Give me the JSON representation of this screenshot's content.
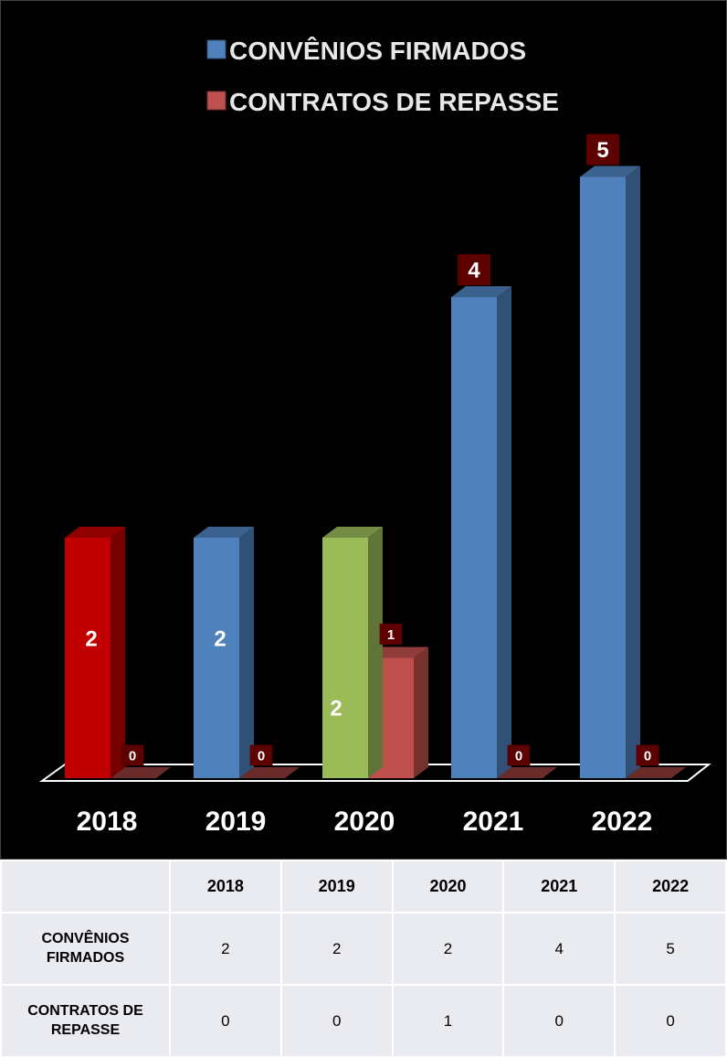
{
  "colors": {
    "background": "#000000",
    "convenios": "#4f81bd",
    "contratos": "#c0504d",
    "bar_2018": "#c00000",
    "bar_2020": "#9bbb59",
    "value_box": "#5c0000",
    "label_text": "#ffffff",
    "table_bg": "#e9ebf0"
  },
  "chart_data": {
    "type": "bar",
    "categories": [
      "2018",
      "2019",
      "2020",
      "2021",
      "2022"
    ],
    "series": [
      {
        "name": "CONVÊNIOS FIRMADOS",
        "values": [
          2,
          2,
          2,
          4,
          5
        ]
      },
      {
        "name": "CONTRATOS DE REPASSE",
        "values": [
          0,
          0,
          1,
          0,
          0
        ]
      }
    ],
    "ylim": [
      0,
      6
    ],
    "grid": false,
    "legend_position": "top-right",
    "bar_colors_series1": [
      "#c00000",
      "#4f81bd",
      "#9bbb59",
      "#4f81bd",
      "#4f81bd"
    ],
    "three_d": true
  },
  "table": {
    "corner": "",
    "headers": [
      "2018",
      "2019",
      "2020",
      "2021",
      "2022"
    ],
    "rows": [
      {
        "label": "CONVÊNIOS FIRMADOS",
        "values": [
          "2",
          "2",
          "2",
          "4",
          "5"
        ]
      },
      {
        "label": "CONTRATOS DE REPASSE",
        "values": [
          "0",
          "0",
          "1",
          "0",
          "0"
        ]
      }
    ]
  }
}
